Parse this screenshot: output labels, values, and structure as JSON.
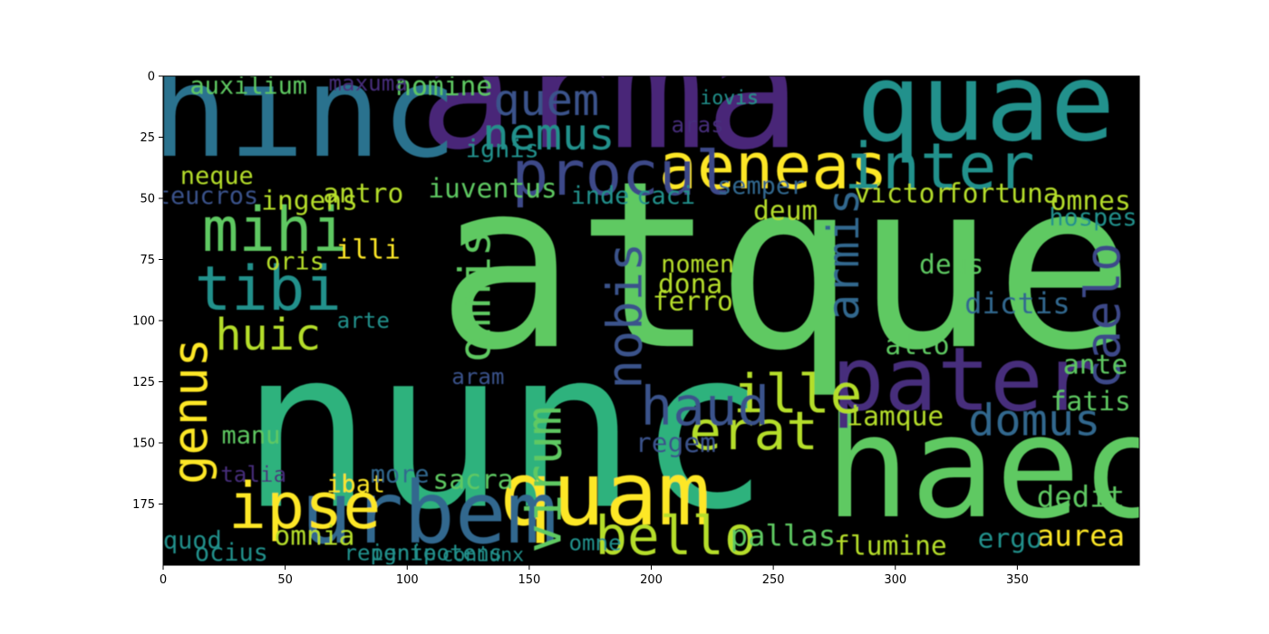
{
  "chart_data": {
    "type": "heatmap",
    "title": "",
    "xlabel": "",
    "ylabel": "",
    "xlim": [
      0,
      400
    ],
    "ylim": [
      200,
      0
    ],
    "x_ticks": [
      0,
      50,
      100,
      150,
      200,
      250,
      300,
      350
    ],
    "y_ticks": [
      0,
      25,
      50,
      75,
      100,
      125,
      150,
      175
    ],
    "background": "#000000",
    "palette": [
      "#440154",
      "#3b528b",
      "#21918c",
      "#5ec962",
      "#fde725"
    ],
    "words": [
      {
        "text": "atque",
        "x": 255,
        "y": 78,
        "size": 95,
        "color": "#5ec962"
      },
      {
        "text": "nunc",
        "x": 140,
        "y": 145,
        "size": 90,
        "color": "#2db27d"
      },
      {
        "text": "arma",
        "x": 183,
        "y": 7,
        "size": 65,
        "color": "#482878"
      },
      {
        "text": "haec",
        "x": 341,
        "y": 160,
        "size": 58,
        "color": "#5ec962"
      },
      {
        "text": "hinc",
        "x": 58,
        "y": 15,
        "size": 52,
        "color": "#2c728e"
      },
      {
        "text": "quae",
        "x": 337,
        "y": 11,
        "size": 44,
        "color": "#21918c"
      },
      {
        "text": "pater",
        "x": 328,
        "y": 124,
        "size": 36,
        "color": "#472d7b"
      },
      {
        "text": "quam",
        "x": 181,
        "y": 171,
        "size": 36,
        "color": "#fde725"
      },
      {
        "text": "urbem",
        "x": 109,
        "y": 179,
        "size": 35,
        "color": "#31688e"
      },
      {
        "text": "aeneas",
        "x": 250,
        "y": 37,
        "size": 26,
        "color": "#fde725"
      },
      {
        "text": "inter",
        "x": 318,
        "y": 37,
        "size": 26,
        "color": "#21918c"
      },
      {
        "text": "procul",
        "x": 188,
        "y": 40,
        "size": 25,
        "color": "#3e4989"
      },
      {
        "text": "mihi",
        "x": 46,
        "y": 63,
        "size": 25,
        "color": "#5ec962"
      },
      {
        "text": "tibi",
        "x": 43,
        "y": 87,
        "size": 25,
        "color": "#21918c"
      },
      {
        "text": "ipse",
        "x": 58,
        "y": 176,
        "size": 26,
        "color": "#fde725"
      },
      {
        "text": "bello",
        "x": 210,
        "y": 188,
        "size": 22,
        "color": "#b5de2b"
      },
      {
        "text": "erat",
        "x": 242,
        "y": 145,
        "size": 22,
        "color": "#b5de2b"
      },
      {
        "text": "ille",
        "x": 260,
        "y": 130,
        "size": 22,
        "color": "#b5de2b"
      },
      {
        "text": "haud",
        "x": 222,
        "y": 135,
        "size": 22,
        "color": "#3b528b"
      },
      {
        "text": "domus",
        "x": 357,
        "y": 141,
        "size": 18,
        "color": "#31688e"
      },
      {
        "text": "nemus",
        "x": 158,
        "y": 24,
        "size": 18,
        "color": "#21918c"
      },
      {
        "text": "quem",
        "x": 157,
        "y": 10,
        "size": 18,
        "color": "#3b528b"
      },
      {
        "text": "huic",
        "x": 43,
        "y": 106,
        "size": 18,
        "color": "#b5de2b"
      },
      {
        "text": "genus",
        "x": 11,
        "y": 137,
        "size": 20,
        "color": "#fde725",
        "rot": -90
      },
      {
        "text": "virum",
        "x": 156,
        "y": 165,
        "size": 20,
        "color": "#5ec962",
        "rot": -90
      },
      {
        "text": "nobis",
        "x": 189,
        "y": 98,
        "size": 20,
        "color": "#3b528b",
        "rot": -90
      },
      {
        "text": "omnis",
        "x": 128,
        "y": 90,
        "size": 18,
        "color": "#5ec962",
        "rot": -90
      },
      {
        "text": "armis",
        "x": 279,
        "y": 73,
        "size": 18,
        "color": "#31688e",
        "rot": -90
      },
      {
        "text": "caelo",
        "x": 385,
        "y": 98,
        "size": 20,
        "color": "#3e4989",
        "rot": -90
      },
      {
        "text": "victor",
        "x": 303,
        "y": 48,
        "size": 11,
        "color": "#b5de2b"
      },
      {
        "text": "fortuna",
        "x": 344,
        "y": 48,
        "size": 11,
        "color": "#b5de2b"
      },
      {
        "text": "omnes",
        "x": 380,
        "y": 51,
        "size": 11,
        "color": "#b5de2b"
      },
      {
        "text": "dictis",
        "x": 350,
        "y": 93,
        "size": 12,
        "color": "#31688e"
      },
      {
        "text": "deus",
        "x": 323,
        "y": 77,
        "size": 11,
        "color": "#5ec962"
      },
      {
        "text": "alto",
        "x": 309,
        "y": 110,
        "size": 11,
        "color": "#5ec962"
      },
      {
        "text": "ante",
        "x": 382,
        "y": 118,
        "size": 11,
        "color": "#5ec962"
      },
      {
        "text": "fatis",
        "x": 380,
        "y": 133,
        "size": 11,
        "color": "#5ec962"
      },
      {
        "text": "iamque",
        "x": 300,
        "y": 139,
        "size": 11,
        "color": "#b5de2b"
      },
      {
        "text": "aurea",
        "x": 376,
        "y": 188,
        "size": 12,
        "color": "#fde725"
      },
      {
        "text": "dedit",
        "x": 376,
        "y": 172,
        "size": 12,
        "color": "#5ec962"
      },
      {
        "text": "ergo",
        "x": 347,
        "y": 189,
        "size": 11,
        "color": "#21918c"
      },
      {
        "text": "flumine",
        "x": 298,
        "y": 192,
        "size": 11,
        "color": "#b5de2b"
      },
      {
        "text": "pallas",
        "x": 254,
        "y": 188,
        "size": 12,
        "color": "#5ec962"
      },
      {
        "text": "omnia",
        "x": 62,
        "y": 188,
        "size": 11,
        "color": "#b5de2b"
      },
      {
        "text": "sacra",
        "x": 127,
        "y": 165,
        "size": 11,
        "color": "#5ec962"
      },
      {
        "text": "regem",
        "x": 210,
        "y": 150,
        "size": 11,
        "color": "#3b528b"
      },
      {
        "text": "ferro",
        "x": 217,
        "y": 92,
        "size": 11,
        "color": "#b5de2b"
      },
      {
        "text": "dona",
        "x": 216,
        "y": 85,
        "size": 11,
        "color": "#b5de2b"
      },
      {
        "text": "nomen",
        "x": 219,
        "y": 77,
        "size": 10,
        "color": "#b5de2b"
      },
      {
        "text": "deum",
        "x": 255,
        "y": 55,
        "size": 11,
        "color": "#b5de2b"
      },
      {
        "text": "semper",
        "x": 245,
        "y": 45,
        "size": 10,
        "color": "#31688e"
      },
      {
        "text": "caci",
        "x": 206,
        "y": 49,
        "size": 10,
        "color": "#21918c"
      },
      {
        "text": "inde",
        "x": 179,
        "y": 49,
        "size": 10,
        "color": "#21918c"
      },
      {
        "text": "iuventus",
        "x": 135,
        "y": 46,
        "size": 11,
        "color": "#5ec962"
      },
      {
        "text": "ignis",
        "x": 139,
        "y": 30,
        "size": 10,
        "color": "#21918c"
      },
      {
        "text": "nomine",
        "x": 115,
        "y": 4,
        "size": 11,
        "color": "#5ec962"
      },
      {
        "text": "auxilium",
        "x": 35,
        "y": 4,
        "size": 10,
        "color": "#5ec962"
      },
      {
        "text": "maxuma",
        "x": 84,
        "y": 3,
        "size": 9,
        "color": "#472d7b"
      },
      {
        "text": "ingens",
        "x": 60,
        "y": 51,
        "size": 11,
        "color": "#b5de2b"
      },
      {
        "text": "antro",
        "x": 82,
        "y": 48,
        "size": 11,
        "color": "#b5de2b"
      },
      {
        "text": "neque",
        "x": 22,
        "y": 41,
        "size": 10,
        "color": "#b5de2b"
      },
      {
        "text": "teucros",
        "x": 18,
        "y": 49,
        "size": 10,
        "color": "#3b528b"
      },
      {
        "text": "illi",
        "x": 84,
        "y": 71,
        "size": 11,
        "color": "#fde725"
      },
      {
        "text": "oris",
        "x": 54,
        "y": 76,
        "size": 10,
        "color": "#b5de2b"
      },
      {
        "text": "quod",
        "x": 12,
        "y": 190,
        "size": 10,
        "color": "#21918c"
      },
      {
        "text": "ocius",
        "x": 28,
        "y": 195,
        "size": 10,
        "color": "#21918c"
      },
      {
        "text": "ibat",
        "x": 79,
        "y": 167,
        "size": 10,
        "color": "#fde725"
      },
      {
        "text": "talia",
        "x": 37,
        "y": 163,
        "size": 9,
        "color": "#472d7b"
      },
      {
        "text": "more",
        "x": 97,
        "y": 163,
        "size": 10,
        "color": "#31688e"
      },
      {
        "text": "repente",
        "x": 93,
        "y": 195,
        "size": 9,
        "color": "#21918c"
      },
      {
        "text": "ignipotens",
        "x": 112,
        "y": 195,
        "size": 9,
        "color": "#21918c"
      },
      {
        "text": "coniunx",
        "x": 131,
        "y": 196,
        "size": 8,
        "color": "#21918c"
      },
      {
        "text": "omne",
        "x": 177,
        "y": 191,
        "size": 9,
        "color": "#21918c"
      },
      {
        "text": "aram",
        "x": 129,
        "y": 123,
        "size": 9,
        "color": "#3b528b"
      },
      {
        "text": "arte",
        "x": 82,
        "y": 100,
        "size": 9,
        "color": "#21918c"
      },
      {
        "text": "manu",
        "x": 36,
        "y": 147,
        "size": 10,
        "color": "#5ec962"
      },
      {
        "text": "aras",
        "x": 219,
        "y": 20,
        "size": 9,
        "color": "#472d7b"
      },
      {
        "text": "hospes",
        "x": 381,
        "y": 58,
        "size": 10,
        "color": "#21918c"
      },
      {
        "text": "iovis",
        "x": 232,
        "y": 9,
        "size": 8,
        "color": "#21918c"
      }
    ]
  }
}
